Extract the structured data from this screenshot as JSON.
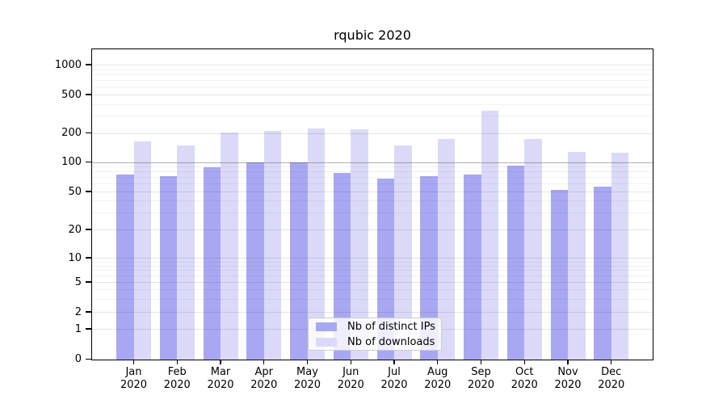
{
  "chart_data": {
    "type": "bar",
    "title": "rqubic 2020",
    "categories": [
      "Jan 2020",
      "Feb 2020",
      "Mar 2020",
      "Apr 2020",
      "May 2020",
      "Jun 2020",
      "Jul 2020",
      "Aug 2020",
      "Sep 2020",
      "Oct 2020",
      "Nov 2020",
      "Dec 2020"
    ],
    "series": [
      {
        "name": "Nb of distinct IPs",
        "color": "#a8a8f2",
        "values": [
          75,
          72,
          88,
          100,
          100,
          77,
          68,
          72,
          75,
          91,
          52,
          56
        ]
      },
      {
        "name": "Nb of downloads",
        "color": "#dadaf8",
        "values": [
          165,
          148,
          203,
          211,
          221,
          219,
          148,
          172,
          340,
          172,
          127,
          125
        ]
      }
    ],
    "yticks": [
      0,
      1,
      2,
      5,
      10,
      20,
      50,
      100,
      200,
      500,
      1000
    ],
    "yscale": "symlog",
    "ylim": [
      0,
      1800
    ],
    "grid": true,
    "highlight_gridline_value": 100,
    "legend_position": "lower center",
    "xlabel": "",
    "ylabel": ""
  }
}
